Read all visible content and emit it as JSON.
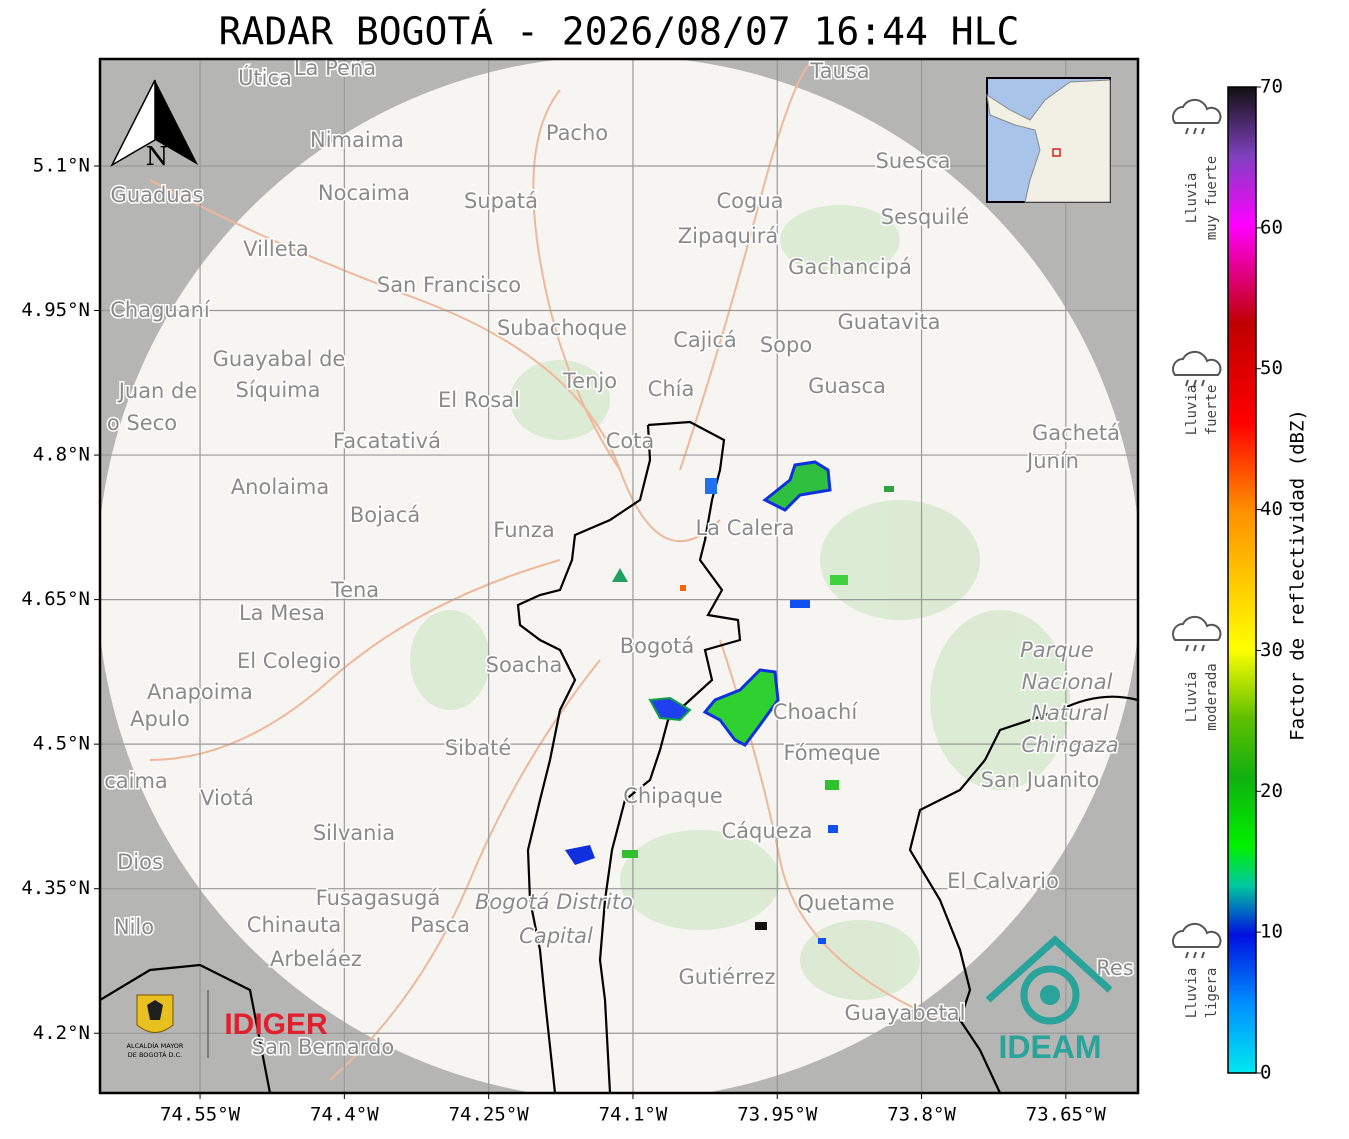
{
  "title": "RADAR BOGOTÁ - 2026/08/07 16:44 HLC",
  "map": {
    "lon_range": [
      -74.654,
      -73.575
    ],
    "lat_range": [
      4.138,
      5.211
    ],
    "lon_ticks": [
      {
        "value": -74.55,
        "label": "74.55°W"
      },
      {
        "value": -74.4,
        "label": "74.4°W"
      },
      {
        "value": -74.25,
        "label": "74.25°W"
      },
      {
        "value": -74.1,
        "label": "74.1°W"
      },
      {
        "value": -73.95,
        "label": "73.95°W"
      },
      {
        "value": -73.8,
        "label": "73.8°W"
      },
      {
        "value": -73.65,
        "label": "73.65°W"
      }
    ],
    "lat_ticks": [
      {
        "value": 5.1,
        "label": "5.1°N"
      },
      {
        "value": 4.95,
        "label": "4.95°N"
      },
      {
        "value": 4.8,
        "label": "4.8°N"
      },
      {
        "value": 4.65,
        "label": "4.65°N"
      },
      {
        "value": 4.5,
        "label": "4.5°N"
      },
      {
        "value": 4.35,
        "label": "4.35°N"
      },
      {
        "value": 4.2,
        "label": "4.2°N"
      }
    ],
    "north": "N",
    "places": [
      "Útica",
      "La Peña",
      "Tausa",
      "Pacho",
      "Nimaima",
      "Suesca",
      "Guaduas",
      "Nocaima",
      "Supatá",
      "Cogua",
      "Sesquilé",
      "Zipaquirá",
      "Villeta",
      "Gachancipá",
      "San Francisco",
      "Chaguaní",
      "Guatavita",
      "Subachoque",
      "Cajicá",
      "Sopo",
      "Guayabal de",
      "Síquima",
      "Juan de",
      "Tenjo",
      "Chía",
      "Guasca",
      "El Rosal",
      "o Seco",
      "Facatativá",
      "Cota",
      "Gachetá",
      "Junín",
      "Anolaima",
      "Bojacá",
      "Funza",
      "La Calera",
      "Tena",
      "La Mesa",
      "Bogotá",
      "Parque",
      "Nacional",
      "Natural",
      "Chingaza",
      "El Colegio",
      "Soacha",
      "Anapoima",
      "Apulo",
      "Choachí",
      "Sibaté",
      "Fómeque",
      "San Juanito",
      "caima",
      "Viotá",
      "Chipaque",
      "Silvania",
      "Cáqueza",
      "Dios",
      "El Calvario",
      "Fusagasugá",
      "Bogotá Distrito",
      "Capital",
      "Quetame",
      "Nilo",
      "Chinauta",
      "Pasca",
      "Arbeláez",
      "Gutiérrez",
      "Guayabetal",
      "San Bernardo",
      "Res"
    ],
    "logos": {
      "idiger": "IDIGER",
      "alcaldia_1": "ALCALDÍA MAYOR",
      "alcaldia_2": "DE BOGOTÁ D.C.",
      "ideam": "IDEAM"
    }
  },
  "colorbar": {
    "label": "Factor de reflectividad (dBZ)",
    "range": [
      0,
      70
    ],
    "ticks": [
      0,
      10,
      20,
      30,
      40,
      50,
      60,
      70
    ],
    "levels": [
      [
        "Lluvia",
        "muy fuerte"
      ],
      [
        "Lluvia",
        "fuerte"
      ],
      [
        "Lluvia",
        "moderada"
      ],
      [
        "Lluvia",
        "ligera"
      ]
    ]
  }
}
